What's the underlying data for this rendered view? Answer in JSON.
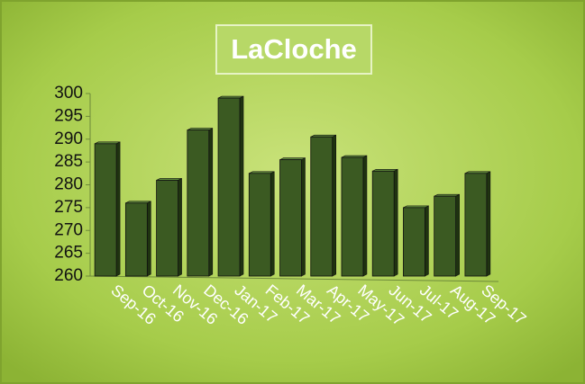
{
  "chart_data": {
    "type": "bar",
    "title": "LaCloche",
    "categories": [
      "Sep-16",
      "Oct-16",
      "Nov-16",
      "Dec-16",
      "Jan-17",
      "Feb-17",
      "Mar-17",
      "Apr-17",
      "May-17",
      "Jun-17",
      "Jul-17",
      "Aug-17",
      "Sep-17"
    ],
    "values": [
      289,
      276,
      281,
      292,
      299,
      282.5,
      285.5,
      290.5,
      286,
      283,
      275,
      277.5,
      282.5
    ],
    "color": "#3b5a22",
    "ylim": [
      260,
      300
    ],
    "yticks": [
      260,
      265,
      270,
      275,
      280,
      285,
      290,
      295,
      300
    ],
    "grid": false
  }
}
